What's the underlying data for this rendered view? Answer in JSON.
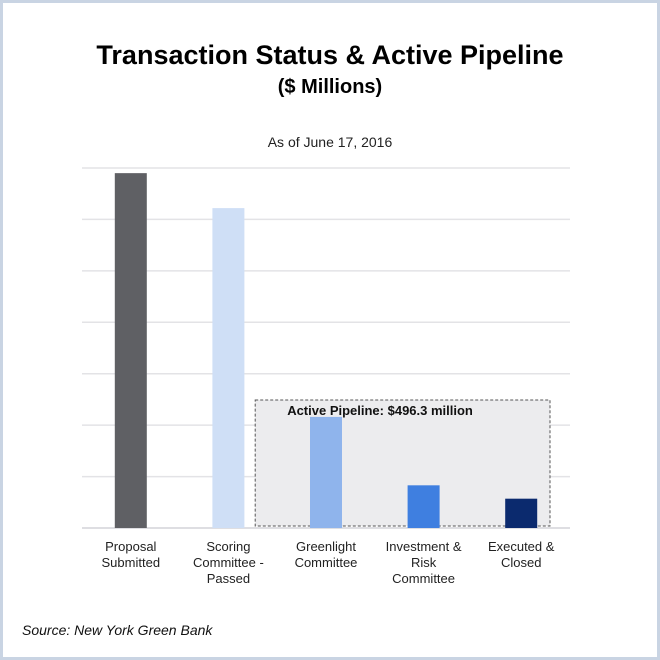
{
  "chart_data": {
    "type": "bar",
    "title": "Transaction Status & Active Pipeline",
    "subtitle": "($ Millions)",
    "as_of": "As of June 17, 2016",
    "categories": [
      [
        "Proposal",
        "Submitted"
      ],
      [
        "Scoring",
        "Committee -",
        "Passed"
      ],
      [
        "Greenlight",
        "Committee"
      ],
      [
        "Investment &",
        "Risk",
        "Committee"
      ],
      [
        "Executed &",
        "Closed"
      ]
    ],
    "values": [
      690,
      622,
      216,
      83,
      57
    ],
    "colors": [
      "#5f6064",
      "#cfdff6",
      "#8fb4ec",
      "#3f7fe0",
      "#0b2a6e"
    ],
    "ylim": [
      0,
      700
    ],
    "grid": true,
    "annotation": {
      "label": "Active Pipeline:  $496.3 million",
      "covers_categories": [
        2,
        3,
        4
      ]
    },
    "source": "Source: New York Green Bank"
  }
}
